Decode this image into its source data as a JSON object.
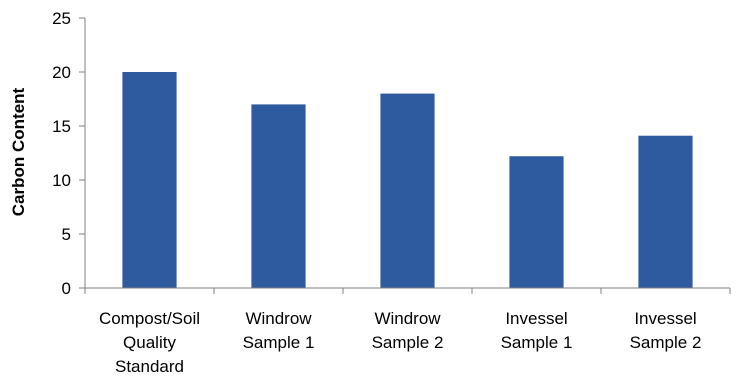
{
  "chart_data": {
    "type": "bar",
    "categories": [
      [
        "Compost/Soil",
        "Quality",
        "Standard"
      ],
      [
        "Windrow",
        "Sample 1"
      ],
      [
        "Windrow",
        "Sample 2"
      ],
      [
        "Invessel",
        "Sample 1"
      ],
      [
        "Invessel",
        "Sample 2"
      ]
    ],
    "values": [
      20,
      17,
      18,
      12.2,
      14.1
    ],
    "title": "",
    "xlabel": "",
    "ylabel": "Carbon Content",
    "ylim": [
      0,
      25
    ],
    "yticks": [
      0,
      5,
      10,
      15,
      20,
      25
    ],
    "grid": false,
    "legend": "none",
    "colors": {
      "bar": "#2E5AA0",
      "axis": "#808080",
      "text": "#000000"
    }
  }
}
